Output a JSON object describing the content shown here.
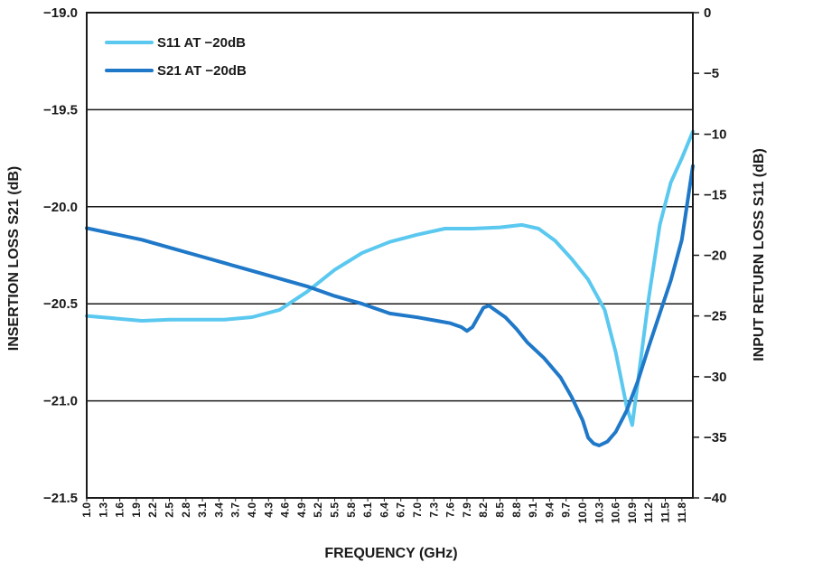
{
  "chart_data": {
    "type": "line",
    "title": "",
    "xlabel": "FREQUENCY (GHz)",
    "ylabel_left": "INSERTION LOSS S21 (dB)",
    "ylabel_right": "INPUT RETURN LOSS S11 (dB)",
    "xlim": [
      1.0,
      12.0
    ],
    "ylim_left": [
      -21.5,
      -19.0
    ],
    "ylim_right": [
      -40,
      0
    ],
    "x_tick_labels": [
      "1.0",
      "1.3",
      "1.6",
      "1.9",
      "2.2",
      "2.5",
      "2.8",
      "3.1",
      "3.4",
      "3.7",
      "4.0",
      "4.3",
      "4.6",
      "4.9",
      "5.2",
      "5.5",
      "5.8",
      "6.1",
      "6.4",
      "6.7",
      "7.0",
      "7.3",
      "7.6",
      "7.9",
      "8.2",
      "8.5",
      "8.8",
      "9.1",
      "9.4",
      "9.7",
      "10.0",
      "10.3",
      "10.6",
      "10.9",
      "11.2",
      "11.5",
      "11.8"
    ],
    "y_left_ticks": [
      "−19.0",
      "−19.5",
      "−20.0",
      "−20.5",
      "−21.0",
      "−21.5"
    ],
    "y_right_ticks": [
      "0",
      "−5",
      "−10",
      "−15",
      "−20",
      "−25",
      "−30",
      "−35",
      "−40"
    ],
    "grid": "horizontal",
    "legend_position": "top-left",
    "series": [
      {
        "name": "S11 AT −20dB",
        "axis": "right",
        "color": "#5bc8f0",
        "x": [
          1.0,
          1.5,
          2.0,
          2.5,
          3.0,
          3.5,
          4.0,
          4.5,
          5.0,
          5.5,
          6.0,
          6.5,
          7.0,
          7.5,
          8.0,
          8.5,
          8.9,
          9.2,
          9.5,
          9.8,
          10.1,
          10.4,
          10.6,
          10.8,
          10.9,
          11.0,
          11.2,
          11.4,
          11.6,
          11.8,
          12.0
        ],
        "y": [
          -25.0,
          -25.2,
          -25.4,
          -25.3,
          -25.3,
          -25.3,
          -25.1,
          -24.5,
          -23.0,
          -21.2,
          -19.8,
          -18.9,
          -18.3,
          -17.8,
          -17.8,
          -17.7,
          -17.5,
          -17.8,
          -18.8,
          -20.3,
          -22.0,
          -24.5,
          -28.0,
          -32.5,
          -34.0,
          -30.5,
          -23.5,
          -17.5,
          -14.0,
          -12.0,
          -9.8
        ]
      },
      {
        "name": "S21 AT −20dB",
        "axis": "left",
        "color": "#1f78c8",
        "x": [
          1.0,
          1.5,
          2.0,
          2.5,
          3.0,
          3.5,
          4.0,
          4.5,
          5.0,
          5.5,
          6.0,
          6.5,
          7.0,
          7.4,
          7.6,
          7.8,
          7.9,
          8.0,
          8.1,
          8.2,
          8.3,
          8.4,
          8.6,
          8.8,
          9.0,
          9.3,
          9.6,
          9.8,
          10.0,
          10.1,
          10.2,
          10.3,
          10.45,
          10.6,
          10.8,
          11.0,
          11.2,
          11.4,
          11.6,
          11.8,
          12.0
        ],
        "y": [
          -20.11,
          -20.14,
          -20.17,
          -20.21,
          -20.25,
          -20.29,
          -20.33,
          -20.37,
          -20.41,
          -20.46,
          -20.5,
          -20.55,
          -20.57,
          -20.59,
          -20.6,
          -20.62,
          -20.64,
          -20.62,
          -20.57,
          -20.52,
          -20.51,
          -20.53,
          -20.57,
          -20.63,
          -20.7,
          -20.78,
          -20.88,
          -20.98,
          -21.1,
          -21.19,
          -21.22,
          -21.23,
          -21.21,
          -21.16,
          -21.05,
          -20.9,
          -20.72,
          -20.55,
          -20.38,
          -20.17,
          -19.79
        ]
      }
    ]
  }
}
